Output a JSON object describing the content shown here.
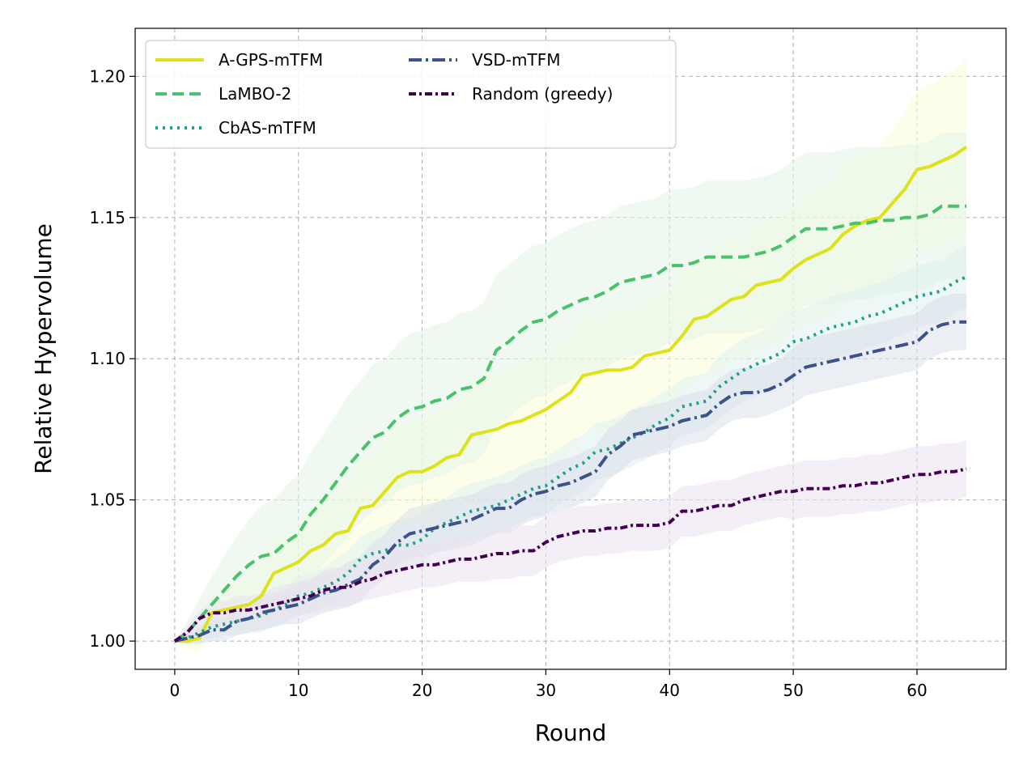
{
  "chart_data": {
    "type": "line",
    "title": "",
    "xlabel": "Round",
    "ylabel": "Relative Hypervolume",
    "xlim": [
      -3.2,
      67.2
    ],
    "ylim": [
      0.99,
      1.217
    ],
    "xticks": [
      0,
      10,
      20,
      30,
      40,
      50,
      60
    ],
    "yticks": [
      1.0,
      1.05,
      1.1,
      1.15,
      1.2
    ],
    "xtick_labels": [
      "0",
      "10",
      "20",
      "30",
      "40",
      "50",
      "60"
    ],
    "ytick_labels": [
      "1.00",
      "1.05",
      "1.10",
      "1.15",
      "1.20"
    ],
    "grid": true,
    "legend_placement": "upper-left",
    "legend_columns": 2,
    "x": [
      0,
      1,
      2,
      3,
      4,
      5,
      6,
      7,
      8,
      9,
      10,
      11,
      12,
      13,
      14,
      15,
      16,
      17,
      18,
      19,
      20,
      21,
      22,
      23,
      24,
      25,
      26,
      27,
      28,
      29,
      30,
      31,
      32,
      33,
      34,
      35,
      36,
      37,
      38,
      39,
      40,
      41,
      42,
      43,
      44,
      45,
      46,
      47,
      48,
      49,
      50,
      51,
      52,
      53,
      54,
      55,
      56,
      57,
      58,
      59,
      60,
      61,
      62,
      63,
      64
    ],
    "series": [
      {
        "name": "A-GPS-mTFM",
        "color": "#dde318",
        "dash": "solid",
        "band_color": "#fbfdd9",
        "values": [
          1.0,
          1.0,
          1.001,
          1.01,
          1.011,
          1.012,
          1.013,
          1.016,
          1.024,
          1.026,
          1.028,
          1.032,
          1.034,
          1.038,
          1.039,
          1.047,
          1.048,
          1.053,
          1.058,
          1.06,
          1.06,
          1.062,
          1.065,
          1.066,
          1.073,
          1.074,
          1.075,
          1.077,
          1.078,
          1.08,
          1.082,
          1.085,
          1.088,
          1.094,
          1.095,
          1.096,
          1.096,
          1.097,
          1.101,
          1.102,
          1.103,
          1.108,
          1.114,
          1.115,
          1.118,
          1.121,
          1.122,
          1.126,
          1.127,
          1.128,
          1.132,
          1.135,
          1.137,
          1.139,
          1.144,
          1.147,
          1.149,
          1.15,
          1.155,
          1.16,
          1.167,
          1.168,
          1.17,
          1.172,
          1.175
        ],
        "band_half_width": [
          0.0,
          0.003,
          0.005,
          0.007,
          0.008,
          0.009,
          0.01,
          0.011,
          0.012,
          0.013,
          0.014,
          0.015,
          0.016,
          0.016,
          0.017,
          0.017,
          0.018,
          0.018,
          0.018,
          0.018,
          0.019,
          0.019,
          0.019,
          0.019,
          0.019,
          0.02,
          0.02,
          0.02,
          0.02,
          0.02,
          0.02,
          0.02,
          0.02,
          0.02,
          0.02,
          0.021,
          0.021,
          0.021,
          0.021,
          0.021,
          0.021,
          0.021,
          0.021,
          0.021,
          0.022,
          0.022,
          0.022,
          0.022,
          0.022,
          0.022,
          0.022,
          0.023,
          0.023,
          0.023,
          0.024,
          0.024,
          0.024,
          0.025,
          0.026,
          0.027,
          0.028,
          0.029,
          0.03,
          0.03,
          0.031
        ]
      },
      {
        "name": "LaMBO-2",
        "color": "#4ac16d",
        "dash": "14 7",
        "band_color": "#e2f4e8",
        "values": [
          1.0,
          1.003,
          1.008,
          1.013,
          1.018,
          1.023,
          1.027,
          1.03,
          1.031,
          1.035,
          1.038,
          1.045,
          1.05,
          1.056,
          1.062,
          1.067,
          1.072,
          1.074,
          1.079,
          1.082,
          1.083,
          1.085,
          1.086,
          1.089,
          1.09,
          1.093,
          1.103,
          1.106,
          1.11,
          1.113,
          1.114,
          1.117,
          1.119,
          1.121,
          1.122,
          1.124,
          1.127,
          1.128,
          1.129,
          1.13,
          1.133,
          1.133,
          1.134,
          1.136,
          1.136,
          1.136,
          1.136,
          1.137,
          1.138,
          1.14,
          1.143,
          1.146,
          1.146,
          1.146,
          1.147,
          1.148,
          1.148,
          1.149,
          1.149,
          1.15,
          1.15,
          1.151,
          1.154,
          1.154,
          1.154
        ],
        "band_half_width": [
          0.0,
          0.004,
          0.007,
          0.01,
          0.012,
          0.014,
          0.016,
          0.018,
          0.019,
          0.02,
          0.021,
          0.022,
          0.023,
          0.024,
          0.025,
          0.025,
          0.026,
          0.026,
          0.026,
          0.027,
          0.027,
          0.027,
          0.027,
          0.027,
          0.027,
          0.027,
          0.027,
          0.027,
          0.027,
          0.027,
          0.027,
          0.027,
          0.027,
          0.027,
          0.027,
          0.027,
          0.027,
          0.027,
          0.027,
          0.027,
          0.027,
          0.027,
          0.027,
          0.027,
          0.027,
          0.027,
          0.027,
          0.027,
          0.027,
          0.027,
          0.027,
          0.027,
          0.027,
          0.027,
          0.027,
          0.027,
          0.027,
          0.026,
          0.026,
          0.026,
          0.026,
          0.026,
          0.026,
          0.026,
          0.026
        ]
      },
      {
        "name": "CbAS-mTFM",
        "color": "#1f9e89",
        "dash": "3 6",
        "band_color": "#dff0ee",
        "values": [
          1.0,
          1.001,
          1.003,
          1.005,
          1.006,
          1.007,
          1.008,
          1.009,
          1.011,
          1.013,
          1.016,
          1.017,
          1.019,
          1.021,
          1.024,
          1.029,
          1.031,
          1.032,
          1.034,
          1.034,
          1.036,
          1.04,
          1.042,
          1.044,
          1.046,
          1.047,
          1.048,
          1.05,
          1.052,
          1.054,
          1.055,
          1.058,
          1.061,
          1.063,
          1.067,
          1.068,
          1.07,
          1.072,
          1.074,
          1.077,
          1.079,
          1.083,
          1.084,
          1.085,
          1.09,
          1.093,
          1.096,
          1.098,
          1.1,
          1.102,
          1.106,
          1.107,
          1.109,
          1.111,
          1.112,
          1.113,
          1.115,
          1.116,
          1.118,
          1.12,
          1.122,
          1.123,
          1.124,
          1.127,
          1.129
        ],
        "band_half_width": [
          0.0,
          0.002,
          0.003,
          0.004,
          0.004,
          0.005,
          0.005,
          0.006,
          0.006,
          0.006,
          0.007,
          0.007,
          0.007,
          0.008,
          0.008,
          0.008,
          0.008,
          0.009,
          0.009,
          0.009,
          0.009,
          0.009,
          0.009,
          0.01,
          0.01,
          0.01,
          0.01,
          0.01,
          0.01,
          0.01,
          0.01,
          0.01,
          0.01,
          0.01,
          0.01,
          0.01,
          0.01,
          0.01,
          0.01,
          0.01,
          0.01,
          0.01,
          0.01,
          0.01,
          0.011,
          0.011,
          0.011,
          0.011,
          0.011,
          0.011,
          0.011,
          0.011,
          0.011,
          0.011,
          0.011,
          0.011,
          0.011,
          0.011,
          0.011,
          0.011,
          0.011,
          0.011,
          0.011,
          0.011,
          0.011
        ]
      },
      {
        "name": "VSD-mTFM",
        "color": "#3b528b",
        "dash": "16 5 3 5",
        "band_color": "#dbe0ea",
        "values": [
          1.0,
          1.001,
          1.002,
          1.004,
          1.004,
          1.007,
          1.008,
          1.01,
          1.011,
          1.012,
          1.013,
          1.015,
          1.017,
          1.018,
          1.02,
          1.022,
          1.027,
          1.03,
          1.035,
          1.038,
          1.039,
          1.04,
          1.041,
          1.042,
          1.043,
          1.045,
          1.047,
          1.047,
          1.05,
          1.052,
          1.053,
          1.055,
          1.056,
          1.058,
          1.06,
          1.066,
          1.069,
          1.073,
          1.074,
          1.075,
          1.076,
          1.078,
          1.079,
          1.08,
          1.084,
          1.087,
          1.088,
          1.088,
          1.089,
          1.091,
          1.094,
          1.097,
          1.098,
          1.099,
          1.1,
          1.101,
          1.102,
          1.103,
          1.104,
          1.105,
          1.106,
          1.11,
          1.112,
          1.113,
          1.113
        ],
        "band_half_width": [
          0.0,
          0.002,
          0.003,
          0.004,
          0.004,
          0.005,
          0.005,
          0.006,
          0.006,
          0.006,
          0.007,
          0.007,
          0.007,
          0.007,
          0.008,
          0.008,
          0.008,
          0.008,
          0.008,
          0.009,
          0.009,
          0.009,
          0.009,
          0.009,
          0.009,
          0.009,
          0.009,
          0.009,
          0.009,
          0.009,
          0.009,
          0.009,
          0.009,
          0.009,
          0.009,
          0.009,
          0.009,
          0.009,
          0.009,
          0.009,
          0.009,
          0.009,
          0.009,
          0.009,
          0.009,
          0.009,
          0.009,
          0.009,
          0.009,
          0.009,
          0.01,
          0.01,
          0.01,
          0.01,
          0.01,
          0.01,
          0.01,
          0.01,
          0.01,
          0.01,
          0.01,
          0.01,
          0.01,
          0.01,
          0.01
        ]
      },
      {
        "name": "Random (greedy)",
        "color": "#440154",
        "dash": "9 4 3 4",
        "band_color": "#ebe2ee",
        "values": [
          1.0,
          1.003,
          1.008,
          1.01,
          1.01,
          1.011,
          1.011,
          1.012,
          1.013,
          1.014,
          1.015,
          1.016,
          1.018,
          1.019,
          1.019,
          1.021,
          1.022,
          1.024,
          1.025,
          1.026,
          1.027,
          1.027,
          1.028,
          1.029,
          1.029,
          1.03,
          1.031,
          1.031,
          1.032,
          1.032,
          1.035,
          1.037,
          1.038,
          1.039,
          1.039,
          1.04,
          1.04,
          1.041,
          1.041,
          1.041,
          1.042,
          1.046,
          1.046,
          1.047,
          1.048,
          1.048,
          1.05,
          1.051,
          1.052,
          1.053,
          1.053,
          1.054,
          1.054,
          1.054,
          1.055,
          1.055,
          1.056,
          1.056,
          1.057,
          1.058,
          1.059,
          1.059,
          1.06,
          1.06,
          1.061
        ],
        "band_half_width": [
          0.0,
          0.002,
          0.003,
          0.004,
          0.004,
          0.005,
          0.005,
          0.005,
          0.006,
          0.006,
          0.006,
          0.006,
          0.007,
          0.007,
          0.007,
          0.007,
          0.007,
          0.008,
          0.008,
          0.008,
          0.008,
          0.008,
          0.008,
          0.008,
          0.008,
          0.009,
          0.009,
          0.009,
          0.009,
          0.009,
          0.009,
          0.009,
          0.009,
          0.009,
          0.009,
          0.009,
          0.009,
          0.009,
          0.009,
          0.009,
          0.009,
          0.009,
          0.009,
          0.009,
          0.009,
          0.009,
          0.009,
          0.009,
          0.009,
          0.009,
          0.01,
          0.01,
          0.01,
          0.01,
          0.01,
          0.01,
          0.01,
          0.01,
          0.01,
          0.01,
          0.01,
          0.01,
          0.01,
          0.01,
          0.01
        ]
      }
    ]
  }
}
